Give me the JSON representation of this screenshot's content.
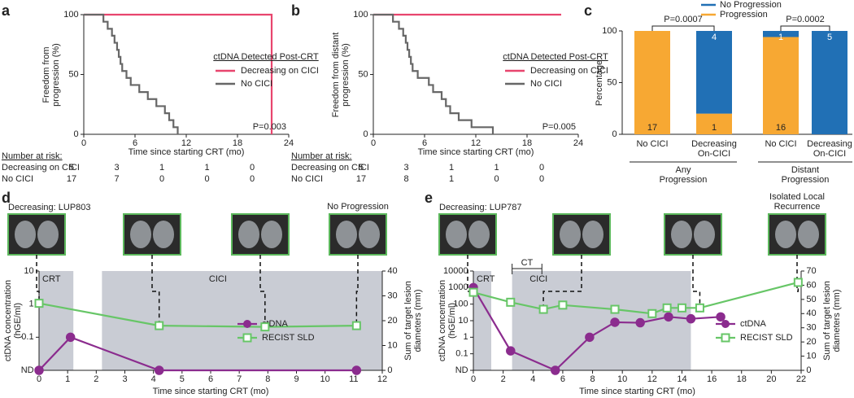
{
  "chart_data": [
    {
      "type": "step",
      "panel_label": "a",
      "y_label": "Freedom from progression (%)",
      "x_label": "Time since starting CRT (mo)",
      "xlim": [
        0,
        24
      ],
      "xticks": [
        0,
        6,
        12,
        18,
        24
      ],
      "ylim": [
        0,
        100
      ],
      "yticks": [
        0,
        50,
        100
      ],
      "legend_title": "ctDNA Detected Post-CRT",
      "series": [
        {
          "name": "Decreasing on CICI",
          "color": "#e8456e",
          "x": [
            0,
            22
          ],
          "values": [
            100,
            0
          ]
        },
        {
          "name": "No CICI",
          "color": "#676767",
          "x": [
            0,
            2.3,
            2.8,
            3.3,
            3.6,
            3.9,
            4.1,
            4.3,
            4.5,
            5,
            5.5,
            6.5,
            7.5,
            8.5,
            9.5,
            10,
            10.5,
            11
          ],
          "values": [
            100,
            94.1,
            88.2,
            82.4,
            76.5,
            70.6,
            64.7,
            58.8,
            52.9,
            47.1,
            41.2,
            35.3,
            29.4,
            23.5,
            17.6,
            11.8,
            5.9,
            0
          ]
        }
      ],
      "annotation": "P=0.003",
      "risk_table": {
        "title": "Number at risk:",
        "rows": [
          {
            "name": "Decreasing on CICI",
            "values": [
              5,
              3,
              1,
              1,
              0
            ]
          },
          {
            "name": "No CICI",
            "values": [
              17,
              7,
              0,
              0,
              0
            ]
          }
        ]
      }
    },
    {
      "type": "step",
      "panel_label": "b",
      "y_label": "Freedom from distant progression (%)",
      "x_label": "Time since starting CRT (mo)",
      "xlim": [
        0,
        24
      ],
      "xticks": [
        0,
        6,
        12,
        18,
        24
      ],
      "ylim": [
        0,
        100
      ],
      "yticks": [
        0,
        50,
        100
      ],
      "legend_title": "ctDNA Detected Post-CRT",
      "series": [
        {
          "name": "Decreasing on CICI",
          "color": "#e8456e",
          "x": [
            0,
            22
          ],
          "values": [
            100,
            100
          ]
        },
        {
          "name": "No CICI",
          "color": "#676767",
          "x": [
            0,
            2.3,
            3,
            3.5,
            3.8,
            4,
            4.2,
            4.4,
            4.6,
            5.2,
            6.5,
            7,
            8,
            8.5,
            9,
            10,
            11.5,
            14
          ],
          "values": [
            100,
            94.1,
            88.2,
            82.4,
            76.5,
            70.6,
            64.7,
            58.8,
            52.9,
            47.1,
            41.2,
            35.3,
            29.4,
            23.5,
            17.6,
            11.8,
            5.9,
            0
          ]
        }
      ],
      "annotation": "P=0.005",
      "risk_table": {
        "title": "Number at risk:",
        "rows": [
          {
            "name": "Decreasing on CICI",
            "values": [
              5,
              3,
              1,
              1,
              0
            ]
          },
          {
            "name": "No CICI",
            "values": [
              17,
              8,
              1,
              0,
              0
            ]
          }
        ]
      }
    },
    {
      "type": "stacked_bar",
      "panel_label": "c",
      "y_label": "Percentage",
      "ylim": [
        0,
        100
      ],
      "yticks": [
        0,
        50,
        100
      ],
      "categories": [
        "No CICI",
        "Decreasing On-CICI",
        "No CICI",
        "Decreasing On-CICI"
      ],
      "groups": [
        "Any Progression",
        "Distant Progression"
      ],
      "series": [
        {
          "name": "No Progression",
          "color": "#2170b5",
          "values": [
            0,
            80,
            5.9,
            100
          ],
          "counts": [
            null,
            4,
            1,
            5
          ]
        },
        {
          "name": "Progression",
          "color": "#f7a833",
          "values": [
            100,
            20,
            94.1,
            0
          ],
          "counts": [
            17,
            1,
            16,
            null
          ]
        }
      ],
      "annotations": [
        "P=0.0007",
        "P=0.0002"
      ]
    },
    {
      "type": "line",
      "panel_label": "d",
      "scan_titles": [
        "Decreasing: LUP803",
        "No Progression"
      ],
      "x_label": "Time since starting CRT (mo)",
      "y_label": "ctDNA concentration (hGE/ml)",
      "y2_label": "Sum of target lesion diameters (mm)",
      "xlim": [
        0,
        12
      ],
      "xticks": [
        0,
        1,
        2,
        3,
        4,
        5,
        6,
        7,
        8,
        9,
        10,
        11,
        12
      ],
      "ylog": true,
      "ylim": [
        0.01,
        10
      ],
      "yticks": [
        {
          "value": 0.01,
          "label": "ND"
        },
        0.1,
        1,
        10
      ],
      "y2lim": [
        0,
        40
      ],
      "y2ticks": [
        0,
        10,
        20,
        30,
        40
      ],
      "spans": [
        {
          "label": "CRT",
          "start": 0,
          "end": 1.2
        },
        {
          "label": "CICI",
          "start": 2.2,
          "end": 12
        }
      ],
      "series": [
        {
          "name": "ctDNA",
          "color": "#8b2c8e",
          "marker": "circle",
          "x": [
            0,
            1.1,
            4.2,
            11.1
          ],
          "values": [
            0.01,
            0.1,
            0.01,
            0.01
          ]
        },
        {
          "name": "RECIST SLD",
          "color": "#67c667",
          "marker": "square",
          "axis": "y2",
          "x": [
            0,
            4.2,
            7.9,
            11.1
          ],
          "values": [
            27,
            18,
            17.5,
            18
          ]
        }
      ]
    },
    {
      "type": "line",
      "panel_label": "e",
      "scan_titles": [
        "Decreasing: LUP787",
        "Isolated Local Recurrence"
      ],
      "x_label": "Time since starting CRT (mo)",
      "y_label": "ctDNA concentration (hGE/ml)",
      "y2_label": "Sum of target lesion diameters (mm)",
      "xlim": [
        0,
        22
      ],
      "xticks": [
        0,
        2,
        4,
        6,
        8,
        10,
        12,
        14,
        16,
        18,
        20,
        22
      ],
      "ylog": true,
      "ylim": [
        0.01,
        10000
      ],
      "yticks": [
        {
          "value": 0.01,
          "label": "ND"
        },
        0.1,
        1,
        10,
        100,
        1000,
        10000
      ],
      "y2lim": [
        0,
        70
      ],
      "y2ticks": [
        0,
        10,
        20,
        30,
        40,
        50,
        60,
        70
      ],
      "spans": [
        {
          "label": "CRT",
          "start": 0,
          "end": 1.2
        },
        {
          "label": "CICI",
          "start": 2.6,
          "end": 14.6
        }
      ],
      "bracket": {
        "label": "CT",
        "start": 2.6,
        "end": 4.6
      },
      "series": [
        {
          "name": "ctDNA",
          "color": "#8b2c8e",
          "marker": "circle",
          "x": [
            0,
            2.5,
            5.5,
            7.8,
            9.5,
            11.2,
            13.1,
            14.6,
            16.6
          ],
          "values": [
            1000,
            0.15,
            0.01,
            1,
            8,
            7.5,
            17,
            13,
            17
          ]
        },
        {
          "name": "RECIST SLD",
          "color": "#67c667",
          "marker": "square",
          "axis": "y2",
          "x": [
            0,
            2.5,
            4.7,
            6,
            9.5,
            12,
            13,
            14,
            15.2,
            21.8
          ],
          "values": [
            55,
            48,
            43,
            46,
            43,
            40,
            44,
            44,
            44,
            62
          ]
        }
      ]
    }
  ]
}
